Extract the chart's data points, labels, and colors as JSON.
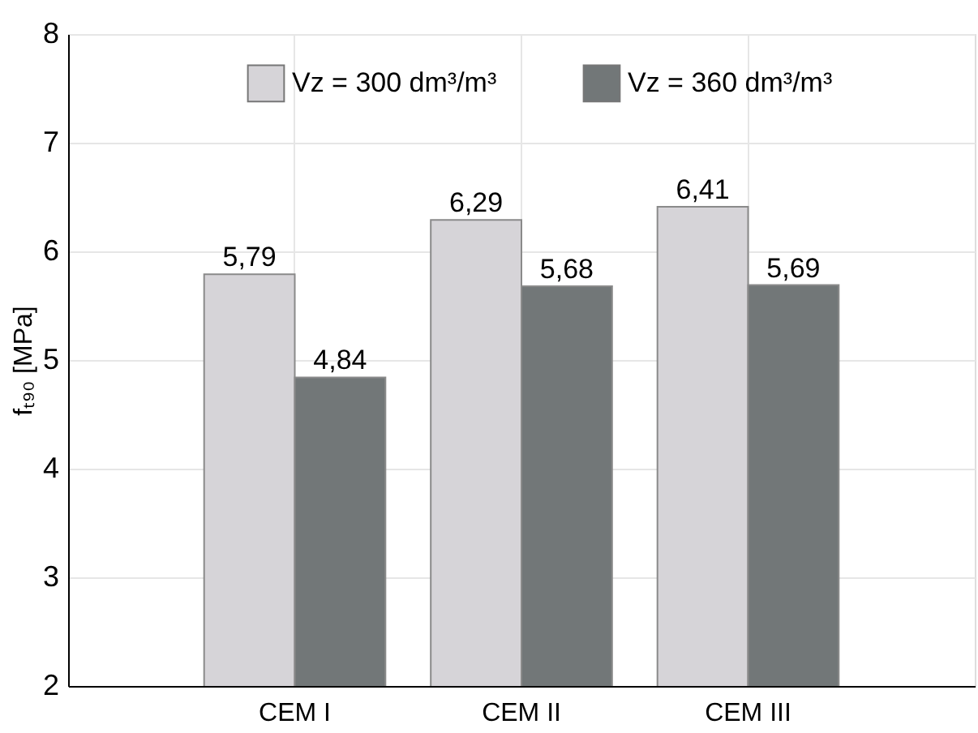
{
  "chart_data": {
    "type": "bar",
    "ylabel": "fₜ₉₀ [MPa]",
    "categories": [
      "CEM I",
      "CEM II",
      "CEM III"
    ],
    "series": [
      {
        "name": "Vz = 300 dm³/m³",
        "color": "#d6d4d8",
        "values": [
          5.79,
          6.29,
          6.41
        ],
        "value_labels": [
          "5,79",
          "6,29",
          "6,41"
        ]
      },
      {
        "name": "Vz = 360 dm³/m³",
        "color": "#727778",
        "values": [
          4.84,
          5.68,
          5.69
        ],
        "value_labels": [
          "4,84",
          "5,68",
          "5,69"
        ]
      }
    ],
    "ylim": [
      2,
      8
    ],
    "yticks": [
      2,
      3,
      4,
      5,
      6,
      7,
      8
    ],
    "grid": true,
    "legend": "top"
  }
}
